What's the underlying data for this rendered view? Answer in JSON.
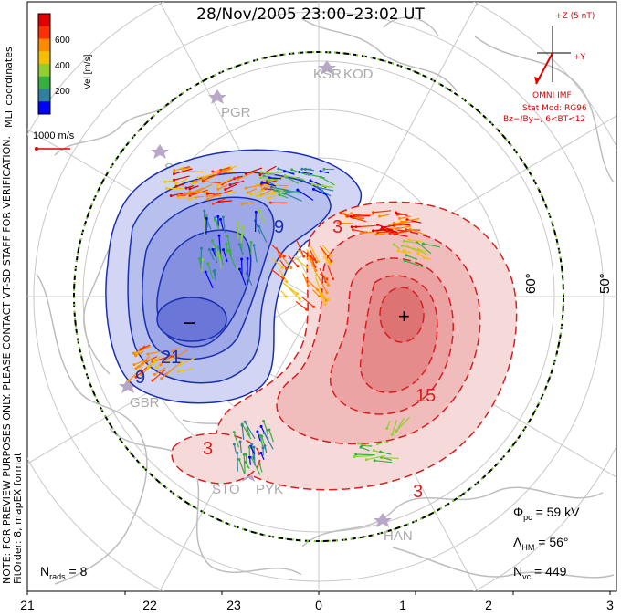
{
  "title": "28/Nov/2005 23:00–23:02 UT",
  "x_axis": {
    "ticks": [
      "21",
      "22",
      "23",
      "0",
      "1",
      "2",
      "3"
    ]
  },
  "color_bar": {
    "label": "Vel [m/s]",
    "ticks": [
      "600",
      "400",
      "200"
    ],
    "colors": [
      "#0000ff",
      "#2f7fa0",
      "#35b040",
      "#8fd030",
      "#f5c000",
      "#ff8a00",
      "#ff3000",
      "#e00000"
    ]
  },
  "scale_label": "1000 m/s",
  "latitude_labels": [
    "60°",
    "50°"
  ],
  "stations": [
    "KSR",
    "KOD",
    "PGR",
    "SAS",
    "GBR",
    "STO",
    "PYK",
    "HAN"
  ],
  "contour_labels": {
    "negative": [
      "9",
      "21",
      "9"
    ],
    "positive": [
      "3",
      "15",
      "3",
      "3"
    ]
  },
  "extrema": {
    "min": "−",
    "max": "+"
  },
  "imf_box": {
    "z_label": "+Z (5 nT)",
    "y_label": "+Y",
    "source": "OMNI IMF",
    "model": "Stat Mod: RG96",
    "condition": "Bz−/By−, 6<BT<12"
  },
  "stats": {
    "phi_pc": {
      "symbol": "Φ",
      "sub": "pc",
      "value": "= 59 kV"
    },
    "lambda_hm": {
      "symbol": "Λ",
      "sub": "HM",
      "value": "= 56°"
    },
    "n_vc": {
      "symbol": "N",
      "sub": "vc",
      "value": "= 449"
    },
    "n_rads": {
      "symbol": "N",
      "sub": "rads",
      "value": "= 8"
    }
  },
  "side_note": {
    "line1": "NOTE: FOR PREVIEW PURPOSES ONLY. PLEASE CONTACT VT-SD STAFF FOR VERIFICATION.",
    "line2": "FitOrder: 8, mapEX format",
    "line3": "MLT coordinates"
  },
  "colors": {
    "negative": "#1a2fb0",
    "positive": "#d62020",
    "fill_neg": "#9aa6e8",
    "fill_pos": "#f2a0a0"
  }
}
